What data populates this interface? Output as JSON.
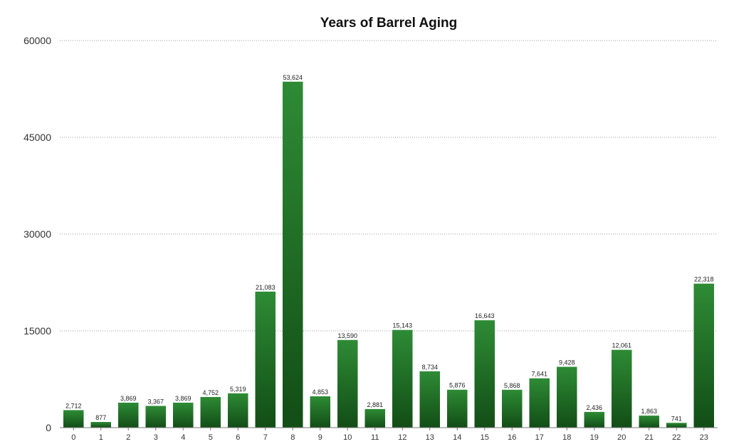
{
  "chart_data": {
    "type": "bar",
    "title": "Years of Barrel Aging",
    "xlabel": "",
    "ylabel": "",
    "ylim": [
      0,
      60000
    ],
    "yticks": [
      "0",
      "15000",
      "30000",
      "45000",
      "60000"
    ],
    "grid": true,
    "bar_color": "#1f6b1f",
    "categories": [
      "0",
      "1",
      "2",
      "3",
      "4",
      "5",
      "6",
      "7",
      "8",
      "9",
      "10",
      "11",
      "12",
      "13",
      "14",
      "15",
      "16",
      "17",
      "18",
      "19",
      "20",
      "21",
      "22",
      "23"
    ],
    "values": [
      2712,
      877,
      3869,
      3367,
      3869,
      4752,
      5319,
      21083,
      53624,
      4853,
      13590,
      2881,
      15143,
      8734,
      5876,
      16643,
      5868,
      7641,
      9428,
      2436,
      12061,
      1863,
      741,
      22318
    ],
    "value_labels": [
      "2,712",
      "877",
      "3,869",
      "3,367",
      "3,869",
      "4,752",
      "5,319",
      "21,083",
      "53,624",
      "4,853",
      "13,590",
      "2,881",
      "15,143",
      "8,734",
      "5,876",
      "16,643",
      "5,868",
      "7,641",
      "9,428",
      "2,436",
      "12,061",
      "1,863",
      "741",
      "22,318"
    ]
  }
}
